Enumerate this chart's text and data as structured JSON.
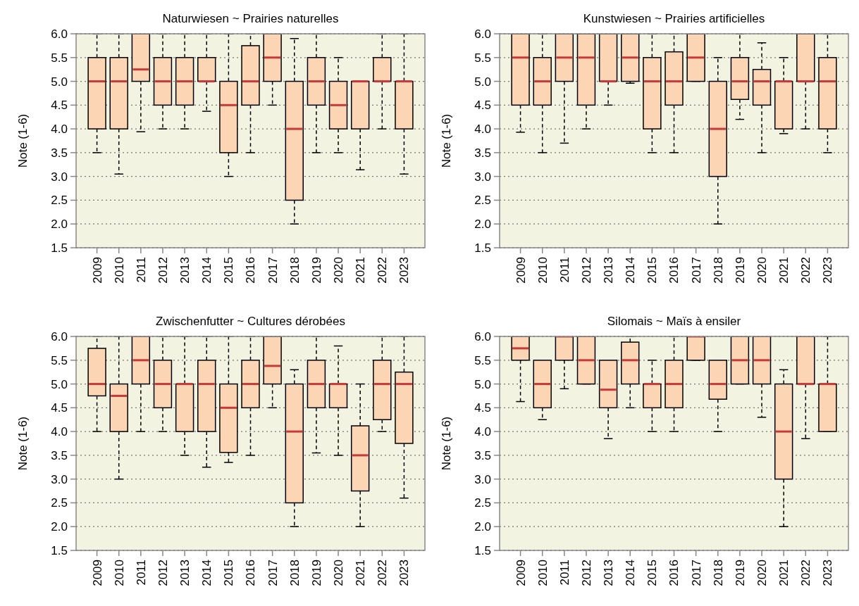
{
  "chart_data": [
    {
      "type": "box",
      "title": "Naturwiesen   ~   Prairies naturelles",
      "ylabel": "Note (1-6)",
      "categories": [
        "2009",
        "2010",
        "2011",
        "2012",
        "2013",
        "2014",
        "2015",
        "2016",
        "2017",
        "2018",
        "2019",
        "2020",
        "2021",
        "2022",
        "2023"
      ],
      "ylim": [
        1.5,
        6
      ],
      "yticks": [
        {
          "value": 1.5,
          "label": "1.5"
        },
        {
          "value": 2,
          "label": "2.0"
        },
        {
          "value": 2.5,
          "label": "2.5"
        },
        {
          "value": 3,
          "label": "3.0"
        },
        {
          "value": 3.5,
          "label": "3.5"
        },
        {
          "value": 4,
          "label": "4.0"
        },
        {
          "value": 4.5,
          "label": "4.5"
        },
        {
          "value": 5,
          "label": "5.0"
        },
        {
          "value": 5.5,
          "label": "5.5"
        },
        {
          "value": 6,
          "label": "6.0"
        }
      ],
      "grid": "y",
      "series": [
        {
          "color": "#fcd5b4",
          "boxes": [
            {
              "low": 3.5,
              "q1": 4,
              "median": 5,
              "q3": 5.5,
              "high": 6
            },
            {
              "low": 3.05,
              "q1": 4,
              "median": 5,
              "q3": 5.5,
              "high": 6
            },
            {
              "low": 3.94,
              "q1": 5,
              "median": 5.25,
              "q3": 6,
              "high": 6
            },
            {
              "low": 4,
              "q1": 4.5,
              "median": 5,
              "q3": 5.5,
              "high": 6
            },
            {
              "low": 4,
              "q1": 4.5,
              "median": 5,
              "q3": 5.5,
              "high": 6
            },
            {
              "low": 4.37,
              "q1": 5,
              "median": 5,
              "q3": 5.5,
              "high": 6
            },
            {
              "low": 3,
              "q1": 3.5,
              "median": 4.5,
              "q3": 5,
              "high": 6
            },
            {
              "low": 3.5,
              "q1": 4.5,
              "median": 5,
              "q3": 5.75,
              "high": 6
            },
            {
              "low": 4.5,
              "q1": 5,
              "median": 5.5,
              "q3": 6,
              "high": 6
            },
            {
              "low": 2,
              "q1": 2.5,
              "median": 4,
              "q3": 5,
              "high": 5.9
            },
            {
              "low": 3.5,
              "q1": 4.5,
              "median": 5,
              "q3": 5.5,
              "high": 6
            },
            {
              "low": 3.5,
              "q1": 4,
              "median": 4.5,
              "q3": 5,
              "high": 5.5
            },
            {
              "low": 3.14,
              "q1": 4,
              "median": 5,
              "q3": 5,
              "high": 5
            },
            {
              "low": 4,
              "q1": 5,
              "median": 5,
              "q3": 5.5,
              "high": 6
            },
            {
              "low": 3.05,
              "q1": 4,
              "median": 5,
              "q3": 5,
              "high": 6
            }
          ]
        }
      ]
    },
    {
      "type": "box",
      "title": "Kunstwiesen   ~   Prairies artificielles",
      "ylabel": "Note (1-6)",
      "categories": [
        "2009",
        "2010",
        "2011",
        "2012",
        "2013",
        "2014",
        "2015",
        "2016",
        "2017",
        "2018",
        "2019",
        "2020",
        "2021",
        "2022",
        "2023"
      ],
      "ylim": [
        1.5,
        6
      ],
      "yticks": [
        {
          "value": 1.5,
          "label": "1.5"
        },
        {
          "value": 2,
          "label": "2.0"
        },
        {
          "value": 2.5,
          "label": "2.5"
        },
        {
          "value": 3,
          "label": "3.0"
        },
        {
          "value": 3.5,
          "label": "3.5"
        },
        {
          "value": 4,
          "label": "4.0"
        },
        {
          "value": 4.5,
          "label": "4.5"
        },
        {
          "value": 5,
          "label": "5.0"
        },
        {
          "value": 5.5,
          "label": "5.5"
        },
        {
          "value": 6,
          "label": "6.0"
        }
      ],
      "grid": "y",
      "series": [
        {
          "color": "#fcd5b4",
          "boxes": [
            {
              "low": 3.93,
              "q1": 4.5,
              "median": 5.5,
              "q3": 6,
              "high": 6
            },
            {
              "low": 3.5,
              "q1": 4.5,
              "median": 5,
              "q3": 5.5,
              "high": 6
            },
            {
              "low": 3.7,
              "q1": 5,
              "median": 5.5,
              "q3": 6,
              "high": 6
            },
            {
              "low": 4,
              "q1": 4.5,
              "median": 5.5,
              "q3": 6,
              "high": 6
            },
            {
              "low": 4.5,
              "q1": 5,
              "median": 5,
              "q3": 6,
              "high": 6
            },
            {
              "low": 4.96,
              "q1": 5,
              "median": 5.5,
              "q3": 6,
              "high": 6
            },
            {
              "low": 3.5,
              "q1": 4,
              "median": 5,
              "q3": 5.5,
              "high": 6
            },
            {
              "low": 3.5,
              "q1": 4.5,
              "median": 5,
              "q3": 5.62,
              "high": 6
            },
            {
              "low": 5,
              "q1": 5,
              "median": 5.5,
              "q3": 6,
              "high": 6
            },
            {
              "low": 2,
              "q1": 3,
              "median": 4,
              "q3": 5,
              "high": 5.5
            },
            {
              "low": 4.2,
              "q1": 4.62,
              "median": 5,
              "q3": 5.5,
              "high": 6
            },
            {
              "low": 3.5,
              "q1": 4.5,
              "median": 5,
              "q3": 5.25,
              "high": 5.81
            },
            {
              "low": 3.9,
              "q1": 4,
              "median": 5,
              "q3": 5,
              "high": 5.5
            },
            {
              "low": 4,
              "q1": 5,
              "median": 5,
              "q3": 6,
              "high": 6
            },
            {
              "low": 3.5,
              "q1": 4,
              "median": 5,
              "q3": 5.5,
              "high": 6
            }
          ]
        }
      ]
    },
    {
      "type": "box",
      "title": "Zwischenfutter   ~   Cultures dérobées",
      "ylabel": "Note (1-6)",
      "categories": [
        "2009",
        "2010",
        "2011",
        "2012",
        "2013",
        "2014",
        "2015",
        "2016",
        "2017",
        "2018",
        "2019",
        "2020",
        "2021",
        "2022",
        "2023"
      ],
      "ylim": [
        1.5,
        6
      ],
      "yticks": [
        {
          "value": 1.5,
          "label": "1.5"
        },
        {
          "value": 2,
          "label": "2.0"
        },
        {
          "value": 2.5,
          "label": "2.5"
        },
        {
          "value": 3,
          "label": "3.0"
        },
        {
          "value": 3.5,
          "label": "3.5"
        },
        {
          "value": 4,
          "label": "4.0"
        },
        {
          "value": 4.5,
          "label": "4.5"
        },
        {
          "value": 5,
          "label": "5.0"
        },
        {
          "value": 5.5,
          "label": "5.5"
        },
        {
          "value": 6,
          "label": "6.0"
        }
      ],
      "grid": "y",
      "series": [
        {
          "color": "#fcd5b4",
          "boxes": [
            {
              "low": 4,
              "q1": 4.75,
              "median": 5,
              "q3": 5.75,
              "high": 6
            },
            {
              "low": 3,
              "q1": 4,
              "median": 4.75,
              "q3": 5,
              "high": 6
            },
            {
              "low": 4,
              "q1": 5,
              "median": 5.5,
              "q3": 6,
              "high": 6
            },
            {
              "low": 4,
              "q1": 4.5,
              "median": 5,
              "q3": 5.5,
              "high": 6
            },
            {
              "low": 3.5,
              "q1": 4,
              "median": 5,
              "q3": 5,
              "high": 6
            },
            {
              "low": 3.25,
              "q1": 4,
              "median": 5,
              "q3": 5.5,
              "high": 6
            },
            {
              "low": 3.35,
              "q1": 3.56,
              "median": 4.5,
              "q3": 5,
              "high": 6
            },
            {
              "low": 3.5,
              "q1": 4.5,
              "median": 5,
              "q3": 5.5,
              "high": 6
            },
            {
              "low": 4.5,
              "q1": 5,
              "median": 5.38,
              "q3": 6,
              "high": 6
            },
            {
              "low": 2,
              "q1": 2.5,
              "median": 4,
              "q3": 5,
              "high": 5.3
            },
            {
              "low": 3.55,
              "q1": 4.5,
              "median": 5,
              "q3": 5.5,
              "high": 6
            },
            {
              "low": 3.5,
              "q1": 4.5,
              "median": 5,
              "q3": 5,
              "high": 5.8
            },
            {
              "low": 2,
              "q1": 2.75,
              "median": 3.5,
              "q3": 4.12,
              "high": 5
            },
            {
              "low": 4,
              "q1": 4.25,
              "median": 5,
              "q3": 5.5,
              "high": 6
            },
            {
              "low": 2.6,
              "q1": 3.75,
              "median": 5,
              "q3": 5.25,
              "high": 6
            }
          ]
        }
      ]
    },
    {
      "type": "box",
      "title": "Silomais   ~   Maïs à ensiler",
      "ylabel": "Note (1-6)",
      "categories": [
        "2009",
        "2010",
        "2011",
        "2012",
        "2013",
        "2014",
        "2015",
        "2016",
        "2017",
        "2018",
        "2019",
        "2020",
        "2021",
        "2022",
        "2023"
      ],
      "ylim": [
        1.5,
        6
      ],
      "yticks": [
        {
          "value": 1.5,
          "label": "1.5"
        },
        {
          "value": 2,
          "label": "2.0"
        },
        {
          "value": 2.5,
          "label": "2.5"
        },
        {
          "value": 3,
          "label": "3.0"
        },
        {
          "value": 3.5,
          "label": "3.5"
        },
        {
          "value": 4,
          "label": "4.0"
        },
        {
          "value": 4.5,
          "label": "4.5"
        },
        {
          "value": 5,
          "label": "5.0"
        },
        {
          "value": 5.5,
          "label": "5.5"
        },
        {
          "value": 6,
          "label": "6.0"
        }
      ],
      "grid": "y",
      "series": [
        {
          "color": "#fcd5b4",
          "boxes": [
            {
              "low": 4.63,
              "q1": 5.5,
              "median": 5.75,
              "q3": 6,
              "high": 6
            },
            {
              "low": 4.25,
              "q1": 4.5,
              "median": 5,
              "q3": 5.5,
              "high": 5.5
            },
            {
              "low": 4.9,
              "q1": 5.5,
              "median": 6,
              "q3": 6,
              "high": 6
            },
            {
              "low": 5,
              "q1": 5,
              "median": 5.5,
              "q3": 6,
              "high": 6
            },
            {
              "low": 3.85,
              "q1": 4.5,
              "median": 4.88,
              "q3": 5.5,
              "high": 5.5
            },
            {
              "low": 4.5,
              "q1": 5,
              "median": 5.5,
              "q3": 5.88,
              "high": 6
            },
            {
              "low": 4,
              "q1": 4.5,
              "median": 5,
              "q3": 5,
              "high": 5.5
            },
            {
              "low": 4,
              "q1": 4.5,
              "median": 5,
              "q3": 5.5,
              "high": 6
            },
            {
              "low": 5.5,
              "q1": 5.5,
              "median": 6,
              "q3": 6,
              "high": 6
            },
            {
              "low": 4,
              "q1": 4.68,
              "median": 5,
              "q3": 5.5,
              "high": 5.5
            },
            {
              "low": 5,
              "q1": 5,
              "median": 5.5,
              "q3": 6,
              "high": 6
            },
            {
              "low": 4.3,
              "q1": 5,
              "median": 5.5,
              "q3": 6,
              "high": 6
            },
            {
              "low": 2,
              "q1": 3,
              "median": 4,
              "q3": 5,
              "high": 5.3
            },
            {
              "low": 3.85,
              "q1": 5,
              "median": 5,
              "q3": 6,
              "high": 6
            },
            {
              "low": 4,
              "q1": 4,
              "median": 5,
              "q3": 5,
              "high": 6
            }
          ]
        }
      ]
    }
  ]
}
